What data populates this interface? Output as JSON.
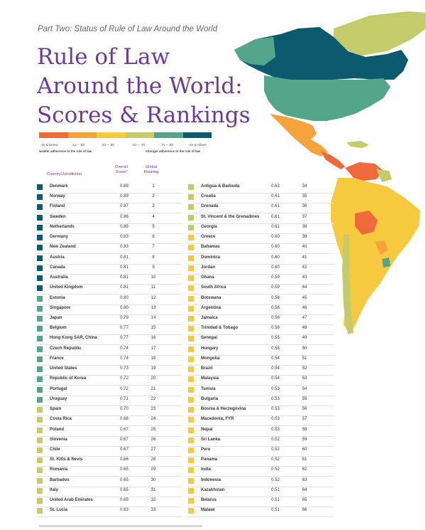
{
  "header": {
    "subtitle": "Part Two: Status of Rule of Law Around the World",
    "title_line1": "Rule of Law",
    "title_line2": "Around the World:",
    "title_line3": "Scores & Rankings"
  },
  "legend": {
    "colors": [
      "#ee6a3a",
      "#f5a33c",
      "#f6c93f",
      "#c3cb6a",
      "#53a68a",
      "#0b5a6e"
    ],
    "ranges": [
      ".40 & Below",
      ".41 – .50",
      ".51 – .60",
      ".61 – .70",
      ".71 – .80",
      ".81 & Above"
    ],
    "note_left": "weaker adherence to the rule of law",
    "note_right": "stronger adherence to the rule of law"
  },
  "table_headers": {
    "country": "Country/Jurisdiction",
    "score_line1": "Overall",
    "score_line2": "Score*",
    "rank_line1": "Global",
    "rank_line2": "Ranking"
  },
  "left_column": [
    {
      "country": "Denmark",
      "score": "0.89",
      "rank": "1",
      "color": "#0b5a6e"
    },
    {
      "country": "Norway",
      "score": "0.89",
      "rank": "2",
      "color": "#0b5a6e"
    },
    {
      "country": "Finland",
      "score": "0.87",
      "rank": "3",
      "color": "#0b5a6e"
    },
    {
      "country": "Sweden",
      "score": "0.86",
      "rank": "4",
      "color": "#0b5a6e"
    },
    {
      "country": "Netherlands",
      "score": "0.85",
      "rank": "5",
      "color": "#0b5a6e"
    },
    {
      "country": "Germany",
      "score": "0.83",
      "rank": "6",
      "color": "#0b5a6e"
    },
    {
      "country": "New Zealand",
      "score": "0.83",
      "rank": "7",
      "color": "#0b5a6e"
    },
    {
      "country": "Austria",
      "score": "0.81",
      "rank": "8",
      "color": "#0b5a6e"
    },
    {
      "country": "Canada",
      "score": "0.81",
      "rank": "9",
      "color": "#0b5a6e"
    },
    {
      "country": "Australia",
      "score": "0.81",
      "rank": "10",
      "color": "#0b5a6e"
    },
    {
      "country": "United Kingdom",
      "score": "0.81",
      "rank": "11",
      "color": "#0b5a6e"
    },
    {
      "country": "Estonia",
      "score": "0.80",
      "rank": "12",
      "color": "#53a68a"
    },
    {
      "country": "Singapore",
      "score": "0.80",
      "rank": "13",
      "color": "#53a68a"
    },
    {
      "country": "Japan",
      "score": "0.79",
      "rank": "14",
      "color": "#53a68a"
    },
    {
      "country": "Belgium",
      "score": "0.77",
      "rank": "15",
      "color": "#53a68a"
    },
    {
      "country": "Hong Kong SAR, China",
      "score": "0.77",
      "rank": "16",
      "color": "#53a68a"
    },
    {
      "country": "Czech Republic",
      "score": "0.74",
      "rank": "17",
      "color": "#53a68a"
    },
    {
      "country": "France",
      "score": "0.74",
      "rank": "18",
      "color": "#53a68a"
    },
    {
      "country": "United States",
      "score": "0.73",
      "rank": "19",
      "color": "#53a68a"
    },
    {
      "country": "Republic of Korea",
      "score": "0.72",
      "rank": "20",
      "color": "#53a68a"
    },
    {
      "country": "Portugal",
      "score": "0.72",
      "rank": "21",
      "color": "#53a68a"
    },
    {
      "country": "Uruguay",
      "score": "0.71",
      "rank": "22",
      "color": "#53a68a"
    },
    {
      "country": "Spain",
      "score": "0.70",
      "rank": "23",
      "color": "#c3cb6a"
    },
    {
      "country": "Costa Rica",
      "score": "0.68",
      "rank": "24",
      "color": "#c3cb6a"
    },
    {
      "country": "Poland",
      "score": "0.67",
      "rank": "25",
      "color": "#c3cb6a"
    },
    {
      "country": "Slovenia",
      "score": "0.67",
      "rank": "26",
      "color": "#c3cb6a"
    },
    {
      "country": "Chile",
      "score": "0.67",
      "rank": "27",
      "color": "#c3cb6a"
    },
    {
      "country": "St. Kitts & Nevis",
      "score": "0.66",
      "rank": "28",
      "color": "#c3cb6a"
    },
    {
      "country": "Romania",
      "score": "0.65",
      "rank": "29",
      "color": "#c3cb6a"
    },
    {
      "country": "Barbados",
      "score": "0.65",
      "rank": "30",
      "color": "#c3cb6a"
    },
    {
      "country": "Italy",
      "score": "0.65",
      "rank": "31",
      "color": "#c3cb6a"
    },
    {
      "country": "United Arab Emirates",
      "score": "0.65",
      "rank": "32",
      "color": "#c3cb6a"
    },
    {
      "country": "St. Lucia",
      "score": "0.63",
      "rank": "33",
      "color": "#c3cb6a"
    }
  ],
  "right_column": [
    {
      "country": "Antigua & Barbuda",
      "score": "0.63",
      "rank": "34",
      "color": "#c3cb6a"
    },
    {
      "country": "Croatia",
      "score": "0.61",
      "rank": "35",
      "color": "#c3cb6a"
    },
    {
      "country": "Grenada",
      "score": "0.61",
      "rank": "36",
      "color": "#c3cb6a"
    },
    {
      "country": "St. Vincent & the Grenadines",
      "score": "0.61",
      "rank": "37",
      "color": "#c3cb6a"
    },
    {
      "country": "Georgia",
      "score": "0.61",
      "rank": "38",
      "color": "#c3cb6a"
    },
    {
      "country": "Greece",
      "score": "0.60",
      "rank": "39",
      "color": "#f6c93f"
    },
    {
      "country": "Bahamas",
      "score": "0.60",
      "rank": "40",
      "color": "#f6c93f"
    },
    {
      "country": "Dominica",
      "score": "0.60",
      "rank": "41",
      "color": "#f6c93f"
    },
    {
      "country": "Jordan",
      "score": "0.60",
      "rank": "42",
      "color": "#f6c93f"
    },
    {
      "country": "Ghana",
      "score": "0.59",
      "rank": "43",
      "color": "#f6c93f"
    },
    {
      "country": "South Africa",
      "score": "0.59",
      "rank": "44",
      "color": "#f6c93f"
    },
    {
      "country": "Botswana",
      "score": "0.58",
      "rank": "45",
      "color": "#f6c93f"
    },
    {
      "country": "Argentina",
      "score": "0.58",
      "rank": "46",
      "color": "#f6c93f"
    },
    {
      "country": "Jamaica",
      "score": "0.58",
      "rank": "47",
      "color": "#f6c93f"
    },
    {
      "country": "Trinidad & Tobago",
      "score": "0.56",
      "rank": "48",
      "color": "#f6c93f"
    },
    {
      "country": "Senegal",
      "score": "0.55",
      "rank": "49",
      "color": "#f6c93f"
    },
    {
      "country": "Hungary",
      "score": "0.55",
      "rank": "50",
      "color": "#f6c93f"
    },
    {
      "country": "Mongolia",
      "score": "0.54",
      "rank": "51",
      "color": "#f6c93f"
    },
    {
      "country": "Brazil",
      "score": "0.54",
      "rank": "52",
      "color": "#f6c93f"
    },
    {
      "country": "Malaysia",
      "score": "0.54",
      "rank": "53",
      "color": "#f6c93f"
    },
    {
      "country": "Tunisia",
      "score": "0.53",
      "rank": "54",
      "color": "#f6c93f"
    },
    {
      "country": "Bulgaria",
      "score": "0.53",
      "rank": "55",
      "color": "#f6c93f"
    },
    {
      "country": "Bosnia & Herzegovina",
      "score": "0.53",
      "rank": "56",
      "color": "#f6c93f"
    },
    {
      "country": "Macedonia, FYR",
      "score": "0.53",
      "rank": "57",
      "color": "#f6c93f"
    },
    {
      "country": "Nepal",
      "score": "0.53",
      "rank": "58",
      "color": "#f6c93f"
    },
    {
      "country": "Sri Lanka",
      "score": "0.52",
      "rank": "59",
      "color": "#f6c93f"
    },
    {
      "country": "Peru",
      "score": "0.52",
      "rank": "60",
      "color": "#f6c93f"
    },
    {
      "country": "Panama",
      "score": "0.52",
      "rank": "61",
      "color": "#f6c93f"
    },
    {
      "country": "India",
      "score": "0.52",
      "rank": "62",
      "color": "#f6c93f"
    },
    {
      "country": "Indonesia",
      "score": "0.52",
      "rank": "63",
      "color": "#f6c93f"
    },
    {
      "country": "Kazakhstan",
      "score": "0.51",
      "rank": "64",
      "color": "#f6c93f"
    },
    {
      "country": "Belarus",
      "score": "0.51",
      "rank": "65",
      "color": "#f6c93f"
    },
    {
      "country": "Malawi",
      "score": "0.51",
      "rank": "66",
      "color": "#f6c93f"
    }
  ]
}
